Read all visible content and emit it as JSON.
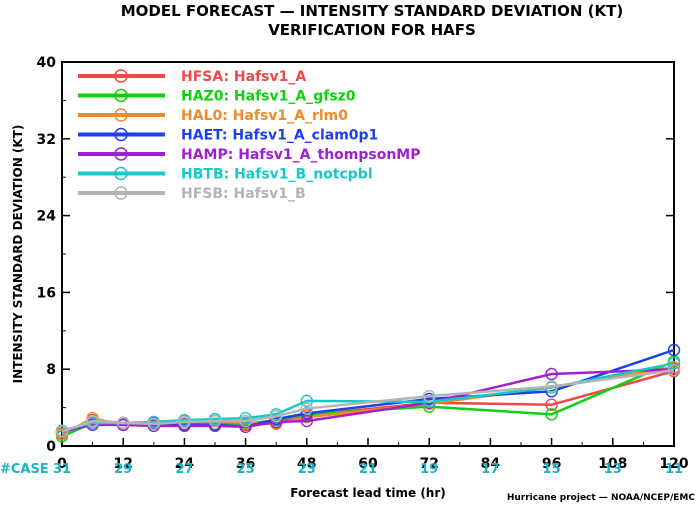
{
  "chart_data": {
    "type": "line",
    "title": "MODEL FORECAST — INTENSITY STANDARD DEVIATION (KT)",
    "subtitle": "VERIFICATION FOR HAFS",
    "xlabel": "Forecast lead time (hr)",
    "ylabel": "INTENSITY STANDARD DEVIATION (KT)",
    "xlim": [
      0,
      120
    ],
    "ylim": [
      0,
      40
    ],
    "x_ticks": [
      "0",
      "12",
      "24",
      "36",
      "48",
      "60",
      "72",
      "84",
      "96",
      "108",
      "120"
    ],
    "y_ticks": [
      "0",
      "8",
      "16",
      "24",
      "32",
      "40"
    ],
    "case_label": "#CASE",
    "case_counts": [
      "31",
      "29",
      "27",
      "25",
      "23",
      "21",
      "19",
      "17",
      "15",
      "13",
      "11"
    ],
    "credit": "Hurricane project — NOAA/NCEP/EMC",
    "legend_position": "top-left",
    "grid": false,
    "x": [
      0,
      6,
      12,
      18,
      24,
      30,
      36,
      42,
      48,
      72,
      96,
      120
    ],
    "series": [
      {
        "name": "HFSA:  Hafsv1_A",
        "color": "#f04848",
        "values": [
          1.3,
          2.7,
          2.4,
          2.1,
          2.3,
          2.3,
          2.2,
          2.4,
          3.2,
          4.5,
          4.3,
          7.8
        ]
      },
      {
        "name": "HAZ0:  Hafsv1_A_gfsz0",
        "color": "#10d010",
        "values": [
          1.0,
          2.4,
          2.2,
          2.3,
          2.2,
          2.3,
          2.3,
          2.7,
          3.3,
          4.1,
          3.3,
          8.8
        ]
      },
      {
        "name": "HAL0:  Hafsv1_A_rlm0",
        "color": "#f08c28",
        "values": [
          1.2,
          2.9,
          2.2,
          2.1,
          2.6,
          2.6,
          2.4,
          2.3,
          3.0,
          4.4,
          6.1,
          8.2
        ]
      },
      {
        "name": "HAET:  Hafsv1_A_clam0p1",
        "color": "#1e3ef0",
        "values": [
          1.5,
          2.4,
          2.4,
          2.4,
          2.2,
          2.2,
          2.0,
          2.8,
          3.4,
          4.9,
          5.7,
          10.0
        ]
      },
      {
        "name": "HAMP:  Hafsv1_A_thompsonMP",
        "color": "#a020d0",
        "values": [
          1.5,
          2.2,
          2.2,
          2.1,
          2.1,
          2.1,
          2.0,
          2.5,
          2.6,
          4.5,
          7.5,
          8.0
        ]
      },
      {
        "name": "HBTB:  Hafsv1_B_notcpbl",
        "color": "#18c8c8",
        "values": [
          1.6,
          2.4,
          2.4,
          2.5,
          2.7,
          2.8,
          2.9,
          3.3,
          4.7,
          4.6,
          6.1,
          8.6
        ]
      },
      {
        "name": "HFSB:  Hafsv1_B",
        "color": "#b4b4b4",
        "values": [
          1.5,
          2.6,
          2.4,
          2.3,
          2.5,
          2.6,
          2.6,
          3.1,
          3.9,
          5.2,
          6.2,
          7.9
        ]
      }
    ],
    "case_color": "#18b4c8"
  }
}
